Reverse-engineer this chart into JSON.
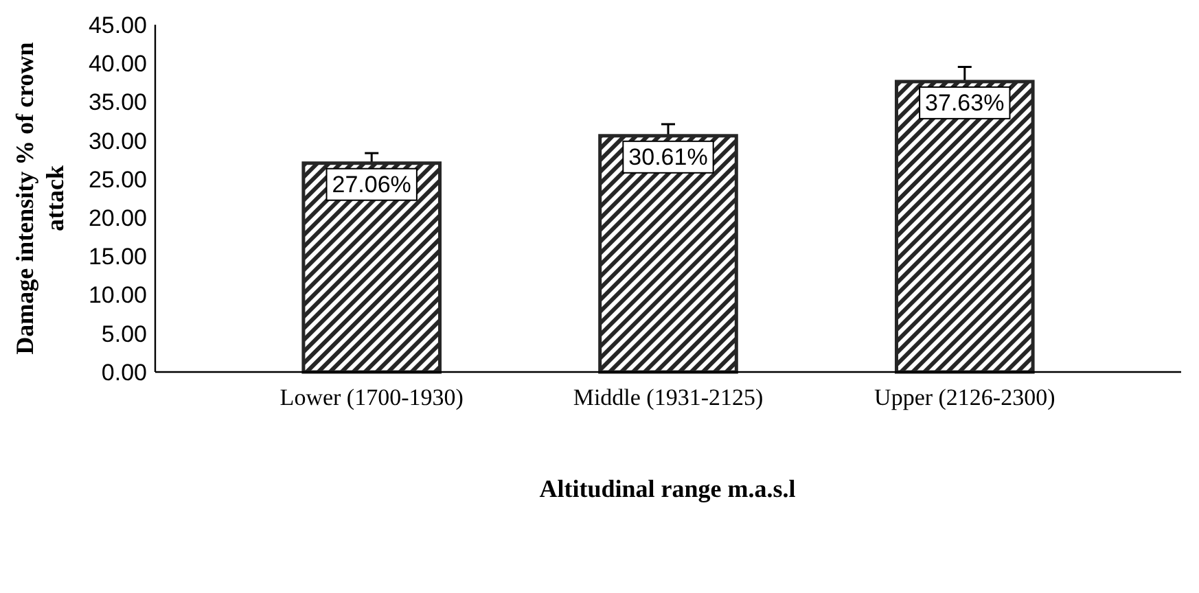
{
  "chart_data": {
    "type": "bar",
    "xlabel": "Altitudinal range m.a.s.l",
    "ylabel": "Damage intensity % of crown attack",
    "categories": [
      "Lower (1700-1930)",
      "Middle (1931-2125)",
      "Upper (2126-2300)"
    ],
    "values": [
      27.06,
      30.61,
      37.63
    ],
    "color": "#262626",
    "errors": [
      1.3,
      1.5,
      1.9
    ],
    "value_labels": [
      "27.06%",
      "30.61%",
      "37.63%"
    ],
    "ylim": [
      0,
      45
    ],
    "yticks": [
      {
        "value": 0,
        "label": "0.00"
      },
      {
        "value": 5,
        "label": "5.00"
      },
      {
        "value": 10,
        "label": "10.00"
      },
      {
        "value": 15,
        "label": "15.00"
      },
      {
        "value": 20,
        "label": "20.00"
      },
      {
        "value": 25,
        "label": "25.00"
      },
      {
        "value": 30,
        "label": "30.00"
      },
      {
        "value": 35,
        "label": "35.00"
      },
      {
        "value": 40,
        "label": "40.00"
      },
      {
        "value": 45,
        "label": "45.00"
      }
    ],
    "grid": false
  }
}
